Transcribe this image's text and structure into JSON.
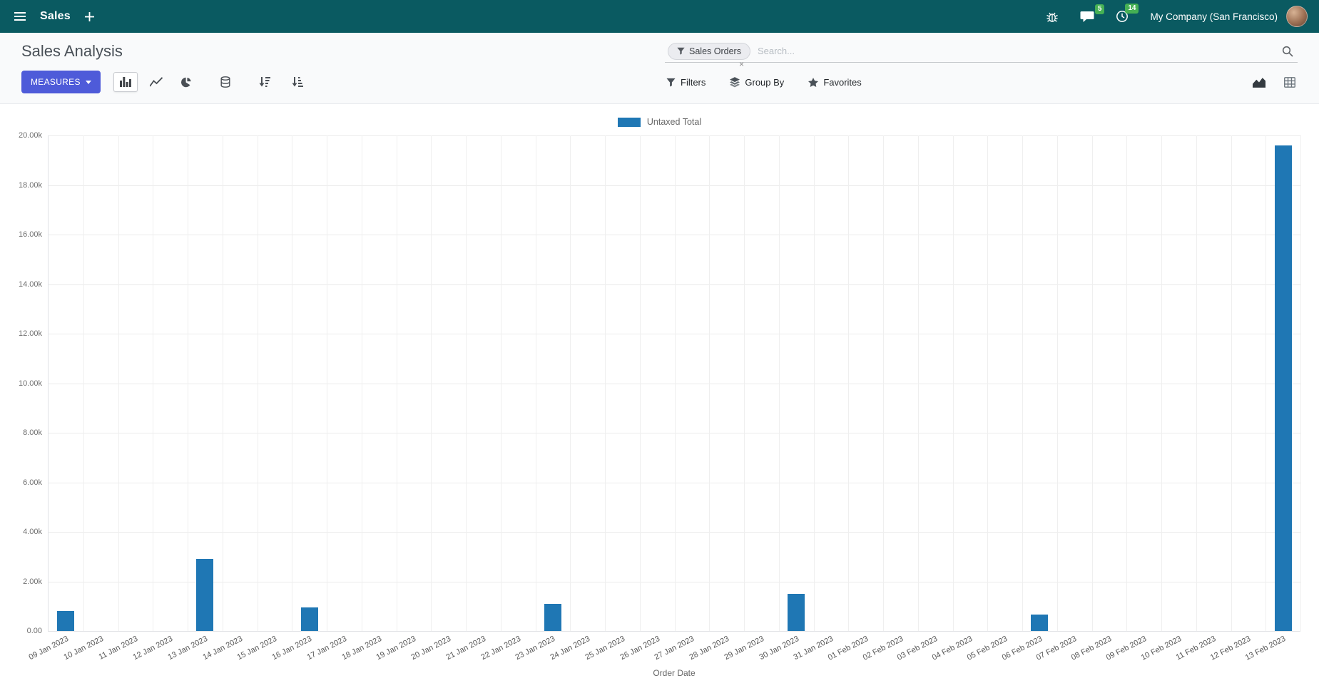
{
  "navbar": {
    "app_name": "Sales",
    "messages_badge": "5",
    "activities_badge": "14",
    "company": "My Company (San Francisco)"
  },
  "control_panel": {
    "title": "Sales Analysis",
    "measures_button": "MEASURES",
    "search": {
      "facet": "Sales Orders",
      "facet_remove": "×",
      "placeholder": "Search..."
    },
    "filters_label": "Filters",
    "group_by_label": "Group By",
    "favorites_label": "Favorites"
  },
  "icons": [
    "hamburger-icon",
    "plus-icon",
    "bug-icon",
    "chat-icon",
    "clock-icon",
    "filter-icon",
    "search-icon",
    "caret-down-icon",
    "bar-chart-icon",
    "line-chart-icon",
    "pie-chart-icon",
    "stacked-icon",
    "sort-desc-icon",
    "sort-asc-icon",
    "layers-icon",
    "star-icon",
    "graph-view-icon",
    "pivot-view-icon",
    "close-icon"
  ],
  "colors": {
    "navbar_bg": "#0a5a61",
    "accent": "#4e5bd9",
    "badge": "#45b054"
  },
  "chart_data": {
    "type": "bar",
    "title": "",
    "xlabel": "Order Date",
    "ylabel": "",
    "ylim": [
      0,
      20000
    ],
    "grid": true,
    "legend_position": "top",
    "ytick_labels": [
      "0.00",
      "2.00k",
      "4.00k",
      "6.00k",
      "8.00k",
      "10.00k",
      "12.00k",
      "14.00k",
      "16.00k",
      "18.00k",
      "20.00k"
    ],
    "categories": [
      "09 Jan 2023",
      "10 Jan 2023",
      "11 Jan 2023",
      "12 Jan 2023",
      "13 Jan 2023",
      "14 Jan 2023",
      "15 Jan 2023",
      "16 Jan 2023",
      "17 Jan 2023",
      "18 Jan 2023",
      "19 Jan 2023",
      "20 Jan 2023",
      "21 Jan 2023",
      "22 Jan 2023",
      "23 Jan 2023",
      "24 Jan 2023",
      "25 Jan 2023",
      "26 Jan 2023",
      "27 Jan 2023",
      "28 Jan 2023",
      "29 Jan 2023",
      "30 Jan 2023",
      "31 Jan 2023",
      "01 Feb 2023",
      "02 Feb 2023",
      "03 Feb 2023",
      "04 Feb 2023",
      "05 Feb 2023",
      "06 Feb 2023",
      "07 Feb 2023",
      "08 Feb 2023",
      "09 Feb 2023",
      "10 Feb 2023",
      "11 Feb 2023",
      "12 Feb 2023",
      "13 Feb 2023"
    ],
    "series": [
      {
        "name": "Untaxed Total",
        "color": "#1f77b4",
        "values": [
          800,
          0,
          0,
          0,
          2900,
          0,
          0,
          950,
          0,
          0,
          0,
          0,
          0,
          0,
          1080,
          0,
          0,
          0,
          0,
          0,
          0,
          1500,
          0,
          0,
          0,
          0,
          0,
          0,
          650,
          0,
          0,
          0,
          0,
          0,
          0,
          19600
        ]
      }
    ]
  }
}
